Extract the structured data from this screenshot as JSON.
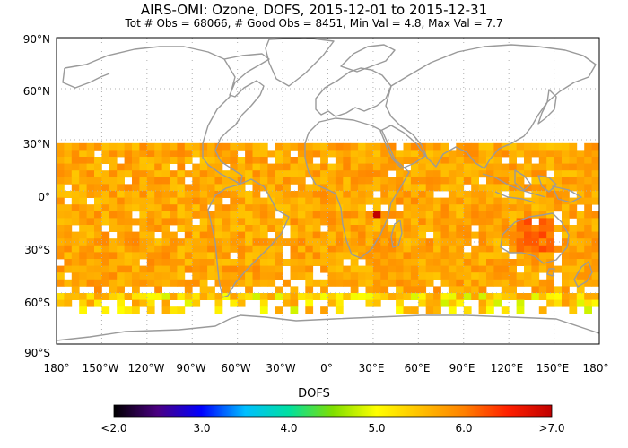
{
  "title": {
    "line1": "AIRS-OMI: Ozone, DOFS, 2015-12-01 to 2015-12-31",
    "line2": "Tot # Obs = 68066, # Good Obs = 8451,  Min Val =  4.8,  Max Val =  7.7"
  },
  "map": {
    "lat_labels": [
      "90°N",
      "60°N",
      "30°N",
      "0°",
      "30°S",
      "60°S",
      "90°S"
    ],
    "lon_labels": [
      "180°",
      "150°W",
      "120°W",
      "90°W",
      "60°W",
      "30°W",
      "0°",
      "30°E",
      "60°E",
      "90°E",
      "120°E",
      "150°E",
      "180°"
    ],
    "data_lat_range": [
      -72,
      28
    ],
    "typical_value": 5.7,
    "colors": {
      "coastline": "#9a9a9a",
      "grid": "#b0b0b0",
      "frame": "#000000",
      "missing": "#ffffff"
    }
  },
  "colorbar": {
    "title": "DOFS",
    "labels": [
      "<2.0",
      "3.0",
      "4.0",
      "5.0",
      "6.0",
      ">7.0"
    ],
    "range": [
      2.0,
      7.0
    ],
    "stops": [
      "#000000",
      "#4b0082",
      "#0000ff",
      "#00bfff",
      "#00e0a0",
      "#7fdf00",
      "#ffff00",
      "#ffc000",
      "#ff8000",
      "#ff2000",
      "#c00000"
    ]
  }
}
